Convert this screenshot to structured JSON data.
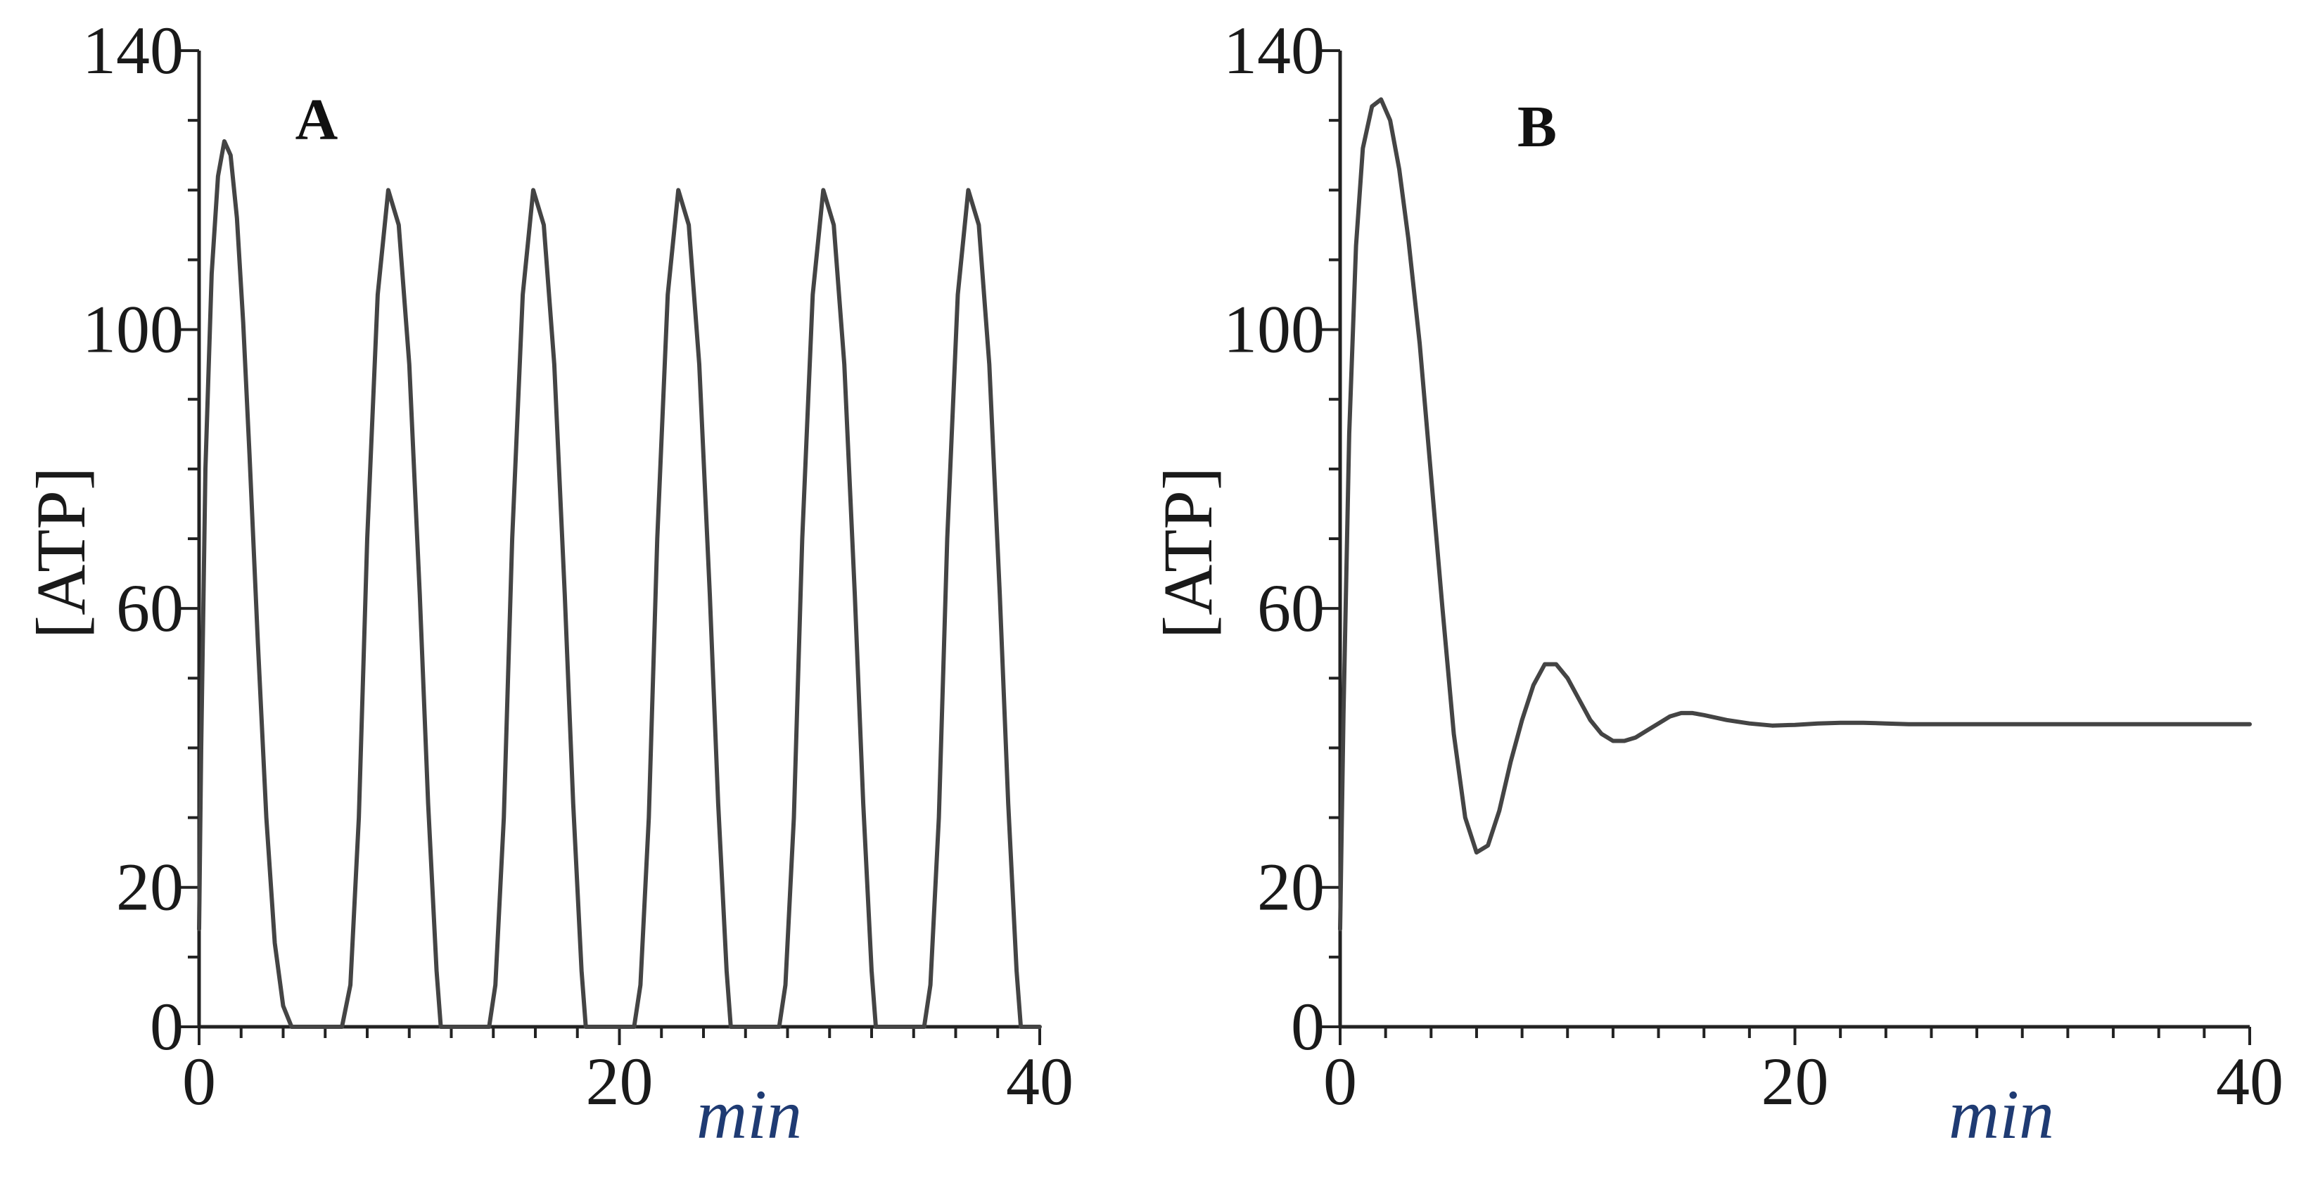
{
  "chart_data": [
    {
      "type": "line",
      "panel_label": "A",
      "xlabel": "min",
      "ylabel": "[ATP]",
      "xlim": [
        0,
        40
      ],
      "ylim": [
        0,
        140
      ],
      "x_ticks": [
        0,
        20,
        40
      ],
      "y_ticks": [
        0,
        20,
        60,
        100,
        140
      ],
      "line_color": "#444444",
      "series": [
        {
          "x": [
            0,
            0.1,
            0.3,
            0.6,
            0.9,
            1.2,
            1.5,
            1.8,
            2.1,
            2.4,
            2.8,
            3.2,
            3.6,
            4.0,
            4.4,
            4.6,
            6.8,
            7.2,
            7.6,
            8.0,
            8.5,
            9.0,
            9.5,
            10.0,
            10.5,
            10.9,
            11.3,
            11.5,
            13.8,
            14.1,
            14.5,
            14.9,
            15.4,
            15.9,
            16.4,
            16.9,
            17.4,
            17.8,
            18.2,
            18.4,
            20.7,
            21.0,
            21.4,
            21.8,
            22.3,
            22.8,
            23.3,
            23.8,
            24.3,
            24.7,
            25.1,
            25.3,
            27.6,
            27.9,
            28.3,
            28.7,
            29.2,
            29.7,
            30.2,
            30.7,
            31.2,
            31.6,
            32.0,
            32.2,
            34.5,
            34.8,
            35.2,
            35.6,
            36.1,
            36.6,
            37.1,
            37.6,
            38.1,
            38.5,
            38.9,
            39.1,
            40
          ],
          "y": [
            14,
            40,
            80,
            108,
            122,
            127,
            125,
            116,
            101,
            82,
            55,
            30,
            12,
            3,
            0,
            0,
            0,
            6,
            30,
            70,
            105,
            120,
            115,
            95,
            62,
            32,
            8,
            0,
            0,
            6,
            30,
            70,
            105,
            120,
            115,
            95,
            62,
            32,
            8,
            0,
            0,
            6,
            30,
            70,
            105,
            120,
            115,
            95,
            62,
            32,
            8,
            0,
            0,
            6,
            30,
            70,
            105,
            120,
            115,
            95,
            62,
            32,
            8,
            0,
            0,
            6,
            30,
            70,
            105,
            120,
            115,
            95,
            62,
            32,
            8,
            0,
            0
          ]
        }
      ]
    },
    {
      "type": "line",
      "panel_label": "B",
      "xlabel": "min",
      "ylabel": "[ATP]",
      "xlim": [
        0,
        40
      ],
      "ylim": [
        0,
        140
      ],
      "x_ticks": [
        0,
        20,
        40
      ],
      "y_ticks": [
        0,
        20,
        60,
        100,
        140
      ],
      "line_color": "#444444",
      "series": [
        {
          "x": [
            0,
            0.15,
            0.4,
            0.7,
            1.0,
            1.4,
            1.8,
            2.2,
            2.6,
            3.0,
            3.5,
            4.0,
            4.5,
            5.0,
            5.5,
            6.0,
            6.5,
            7.0,
            7.5,
            8.0,
            8.5,
            9.0,
            9.5,
            10.0,
            10.5,
            11.0,
            11.5,
            12.0,
            12.5,
            13.0,
            13.5,
            14.0,
            14.5,
            15.0,
            15.5,
            16.0,
            17.0,
            18.0,
            19.0,
            20.0,
            21.0,
            22.0,
            23.0,
            24.0,
            25.0,
            26.0,
            28.0,
            30.0,
            32.0,
            35.0,
            38.0,
            40.0
          ],
          "y": [
            14,
            45,
            85,
            112,
            126,
            132,
            133,
            130,
            123,
            113,
            98,
            79,
            60,
            42,
            30,
            25,
            26,
            31,
            38,
            44,
            49,
            52,
            52,
            50,
            47,
            44,
            42,
            41,
            41,
            41.5,
            42.5,
            43.5,
            44.5,
            45,
            45,
            44.7,
            44,
            43.5,
            43.2,
            43.3,
            43.5,
            43.6,
            43.6,
            43.5,
            43.4,
            43.4,
            43.4,
            43.4,
            43.4,
            43.4,
            43.4,
            43.4
          ]
        }
      ]
    }
  ]
}
